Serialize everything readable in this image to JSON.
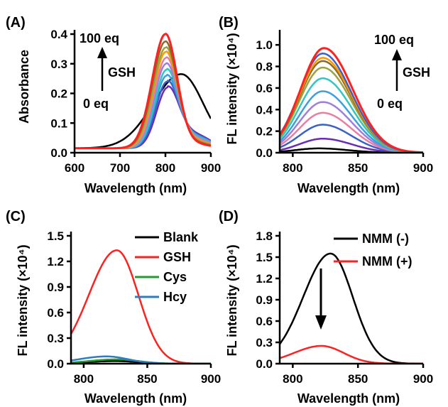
{
  "chart_data": [
    {
      "panel": "(A)",
      "type": "line",
      "xlabel": "Wavelength (nm)",
      "ylabel": "Absorbance",
      "xlim": [
        600,
        900
      ],
      "ylim": [
        0,
        0.4
      ],
      "xticks": [
        "600",
        "700",
        "800",
        "900"
      ],
      "yticks": [
        "0.0",
        "0.1",
        "0.2",
        "0.3",
        "0.4"
      ],
      "annotation": {
        "top": "100 eq",
        "middle": "GSH",
        "bottom": "0 eq"
      },
      "series_colors": [
        "#000000",
        "#6a2bb5",
        "#3a61c8",
        "#3aa0e0",
        "#31c7c0",
        "#a07fdc",
        "#e87fa0",
        "#ff9900",
        "#9ea23c",
        "#8a6a2a",
        "#ff2020"
      ],
      "series_peaks": [
        {
          "center": 835,
          "height": 0.25
        },
        {
          "center": 805,
          "height": 0.205
        },
        {
          "center": 804,
          "height": 0.225
        },
        {
          "center": 803,
          "height": 0.245
        },
        {
          "center": 803,
          "height": 0.265
        },
        {
          "center": 802,
          "height": 0.285
        },
        {
          "center": 802,
          "height": 0.305
        },
        {
          "center": 801,
          "height": 0.325
        },
        {
          "center": 801,
          "height": 0.34
        },
        {
          "center": 800,
          "height": 0.36
        },
        {
          "center": 800,
          "height": 0.385
        }
      ]
    },
    {
      "panel": "(B)",
      "type": "line",
      "xlabel": "Wavelength (nm)",
      "ylabel": "FL intensity (×10⁴)",
      "xlim": [
        790,
        900
      ],
      "ylim": [
        0,
        1.1
      ],
      "xticks": [
        "800",
        "850",
        "900"
      ],
      "yticks": [
        "0.0",
        "0.2",
        "0.4",
        "0.6",
        "0.8",
        "1.0"
      ],
      "annotation": {
        "top": "100 eq",
        "middle": "GSH",
        "bottom": "0 eq"
      },
      "series_colors": [
        "#000000",
        "#6a2bb5",
        "#3a61c8",
        "#e87fa0",
        "#a07fdc",
        "#3aa0e0",
        "#31c7c0",
        "#9ea23c",
        "#8a6a2a",
        "#ff9900",
        "#3a61c8",
        "#ff2020"
      ],
      "series_peaks": [
        {
          "center": 820,
          "height": 0.04
        },
        {
          "center": 823,
          "height": 0.13
        },
        {
          "center": 823,
          "height": 0.26
        },
        {
          "center": 823,
          "height": 0.37
        },
        {
          "center": 823,
          "height": 0.47
        },
        {
          "center": 823,
          "height": 0.57
        },
        {
          "center": 823,
          "height": 0.69
        },
        {
          "center": 823,
          "height": 0.79
        },
        {
          "center": 823,
          "height": 0.85
        },
        {
          "center": 823,
          "height": 0.88
        },
        {
          "center": 823,
          "height": 0.92
        },
        {
          "center": 824,
          "height": 0.97
        }
      ]
    },
    {
      "panel": "(C)",
      "type": "line",
      "xlabel": "Wavelength (nm)",
      "ylabel": "FL intensity (×10⁴)",
      "xlim": [
        790,
        900
      ],
      "ylim": [
        0,
        1.5
      ],
      "xticks": [
        "800",
        "850",
        "900"
      ],
      "yticks": [
        "0.0",
        "0.3",
        "0.6",
        "0.9",
        "1.2",
        "1.5"
      ],
      "legend_position": "top-right",
      "series": [
        {
          "name": "Blank",
          "color": "#000000",
          "center": 825,
          "height": 0.03
        },
        {
          "name": "GSH",
          "color": "#ff2020",
          "center": 826,
          "height": 1.33
        },
        {
          "name": "Cys",
          "color": "#1e9e2e",
          "center": 826,
          "height": 0.05
        },
        {
          "name": "Hcy",
          "color": "#2a7ec8",
          "center": 818,
          "height": 0.085
        }
      ]
    },
    {
      "panel": "(D)",
      "type": "line",
      "xlabel": "Wavelength (nm)",
      "ylabel": "FL intensity (×10⁴)",
      "xlim": [
        790,
        900
      ],
      "ylim": [
        0,
        1.8
      ],
      "xticks": [
        "800",
        "850",
        "900"
      ],
      "yticks": [
        "0.0",
        "0.3",
        "0.6",
        "0.9",
        "1.2",
        "1.5",
        "1.8"
      ],
      "legend_position": "top-right",
      "series": [
        {
          "name": "NMM (-)",
          "color": "#000000",
          "center": 829,
          "height": 1.55
        },
        {
          "name": "NMM (+)",
          "color": "#ff2020",
          "center": 822,
          "height": 0.25
        }
      ]
    }
  ]
}
